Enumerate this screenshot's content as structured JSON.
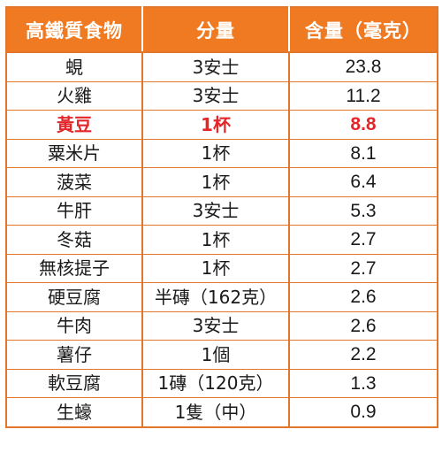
{
  "table": {
    "headers": [
      "高鐵質食物",
      "分量",
      "含量（毫克）"
    ],
    "rows": [
      {
        "food": "蜆",
        "portion": "3安士",
        "amount": "23.8",
        "highlight": false
      },
      {
        "food": "火雞",
        "portion": "3安士",
        "amount": "11.2",
        "highlight": false
      },
      {
        "food": "黃豆",
        "portion": "1杯",
        "amount": "8.8",
        "highlight": true
      },
      {
        "food": "粟米片",
        "portion": "1杯",
        "amount": "8.1",
        "highlight": false
      },
      {
        "food": "菠菜",
        "portion": "1杯",
        "amount": "6.4",
        "highlight": false
      },
      {
        "food": "牛肝",
        "portion": "3安士",
        "amount": "5.3",
        "highlight": false
      },
      {
        "food": "冬菇",
        "portion": "1杯",
        "amount": "2.7",
        "highlight": false
      },
      {
        "food": "無核提子",
        "portion": "1杯",
        "amount": "2.7",
        "highlight": false
      },
      {
        "food": "硬豆腐",
        "portion": "半磚（162克）",
        "amount": "2.6",
        "highlight": false
      },
      {
        "food": "牛肉",
        "portion": "3安士",
        "amount": "2.6",
        "highlight": false
      },
      {
        "food": "薯仔",
        "portion": "1個",
        "amount": "2.2",
        "highlight": false
      },
      {
        "food": "軟豆腐",
        "portion": "1磚（120克）",
        "amount": "1.3",
        "highlight": false
      },
      {
        "food": "生蠔",
        "portion": "1隻（中）",
        "amount": "0.9",
        "highlight": false
      }
    ]
  },
  "colors": {
    "header_bg": "#ef7a21",
    "border": "#e2762a",
    "highlight_text": "#e3262a"
  }
}
